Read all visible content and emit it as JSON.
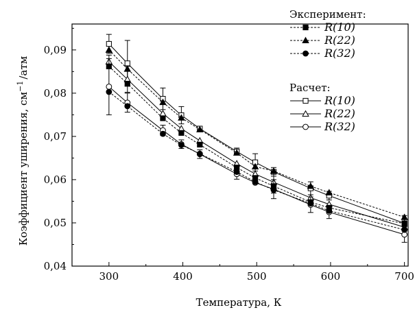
{
  "chart_data": {
    "type": "line",
    "xlabel": "Температура, К",
    "ylabel": "Коэффициент уширения, см",
    "ylabel_sup": "−1",
    "ylabel_unit": "/атм",
    "xlim": [
      250,
      705
    ],
    "ylim": [
      0.04,
      0.096
    ],
    "xticks": [
      300,
      400,
      500,
      600,
      700
    ],
    "xtick_labels": [
      "300",
      "400",
      "500",
      "600",
      "700"
    ],
    "yticks": [
      0.04,
      0.05,
      0.06,
      0.07,
      0.08,
      0.09
    ],
    "ytick_labels": [
      "0,04",
      "0,05",
      "0,06",
      "0,07",
      "0,08",
      "0,09"
    ],
    "grid": false,
    "legend_position": "top-right",
    "legend_groups": [
      {
        "title": "Эксперимент:",
        "entries": [
          "R(10)",
          "R(22)",
          "R(32)"
        ]
      },
      {
        "title": "Расчет:",
        "entries": [
          "R(10)",
          "R(22)",
          "R(32)"
        ]
      }
    ],
    "x": [
      300,
      325,
      373,
      398,
      423,
      473,
      498,
      523,
      573,
      598,
      700
    ],
    "series": [
      {
        "name": "R(10)",
        "group": "Эксперимент",
        "marker": "square-filled",
        "dashed": true,
        "values": [
          0.0862,
          0.0822,
          0.0742,
          0.0708,
          0.0681,
          0.0628,
          0.0604,
          0.0585,
          0.0548,
          0.0535,
          0.0498
        ],
        "errors": [
          null,
          null,
          null,
          null,
          null,
          null,
          null,
          null,
          null,
          null,
          null
        ]
      },
      {
        "name": "R(22)",
        "group": "Эксперимент",
        "marker": "triangle-filled",
        "dashed": true,
        "values": [
          0.09,
          0.0856,
          0.0779,
          0.0743,
          0.0716,
          0.0662,
          0.063,
          0.062,
          0.0585,
          0.057,
          0.0513
        ],
        "errors": [
          null,
          null,
          null,
          null,
          null,
          null,
          null,
          null,
          null,
          null,
          null
        ]
      },
      {
        "name": "R(32)",
        "group": "Эксперимент",
        "marker": "circle-filled",
        "dashed": true,
        "values": [
          0.0803,
          0.077,
          0.0706,
          0.068,
          0.066,
          0.0618,
          0.0595,
          0.0576,
          0.0545,
          0.0528,
          0.0484
        ],
        "errors": [
          null,
          null,
          null,
          null,
          null,
          null,
          null,
          null,
          null,
          null,
          null
        ]
      },
      {
        "name": "R(10)",
        "group": "Расчет",
        "marker": "square-open",
        "dashed": false,
        "values": [
          0.0914,
          0.0869,
          0.0787,
          0.0749,
          0.0718,
          0.0665,
          0.064,
          0.0618,
          0.058,
          0.0563,
          0.0499
        ],
        "errors": [
          0.0022,
          0.0053,
          0.0025,
          0.002,
          0.0,
          0.0008,
          0.002,
          0.001,
          0.0015,
          0.001,
          0.0018
        ]
      },
      {
        "name": "R(22)",
        "group": "Расчет",
        "marker": "triangle-open",
        "dashed": false,
        "values": [
          0.0873,
          0.0832,
          0.0753,
          0.0718,
          0.069,
          0.0637,
          0.0613,
          0.0594,
          0.0558,
          0.0543,
          0.049
        ],
        "errors": [
          0.0015,
          0.003,
          0.0,
          0.0,
          0.0,
          0.0,
          0.0,
          0.0025,
          0.0,
          0.0,
          0.0
        ]
      },
      {
        "name": "R(32)",
        "group": "Расчет",
        "marker": "circle-open",
        "dashed": false,
        "values": [
          0.0815,
          0.0778,
          0.0714,
          0.0682,
          0.0659,
          0.0613,
          0.0593,
          0.0578,
          0.0542,
          0.0525,
          0.0473
        ],
        "errors": [
          0.0065,
          0.0022,
          0.0012,
          0.001,
          0.001,
          0.0012,
          0.0,
          0.0022,
          0.0018,
          0.0015,
          0.0018
        ]
      }
    ]
  }
}
